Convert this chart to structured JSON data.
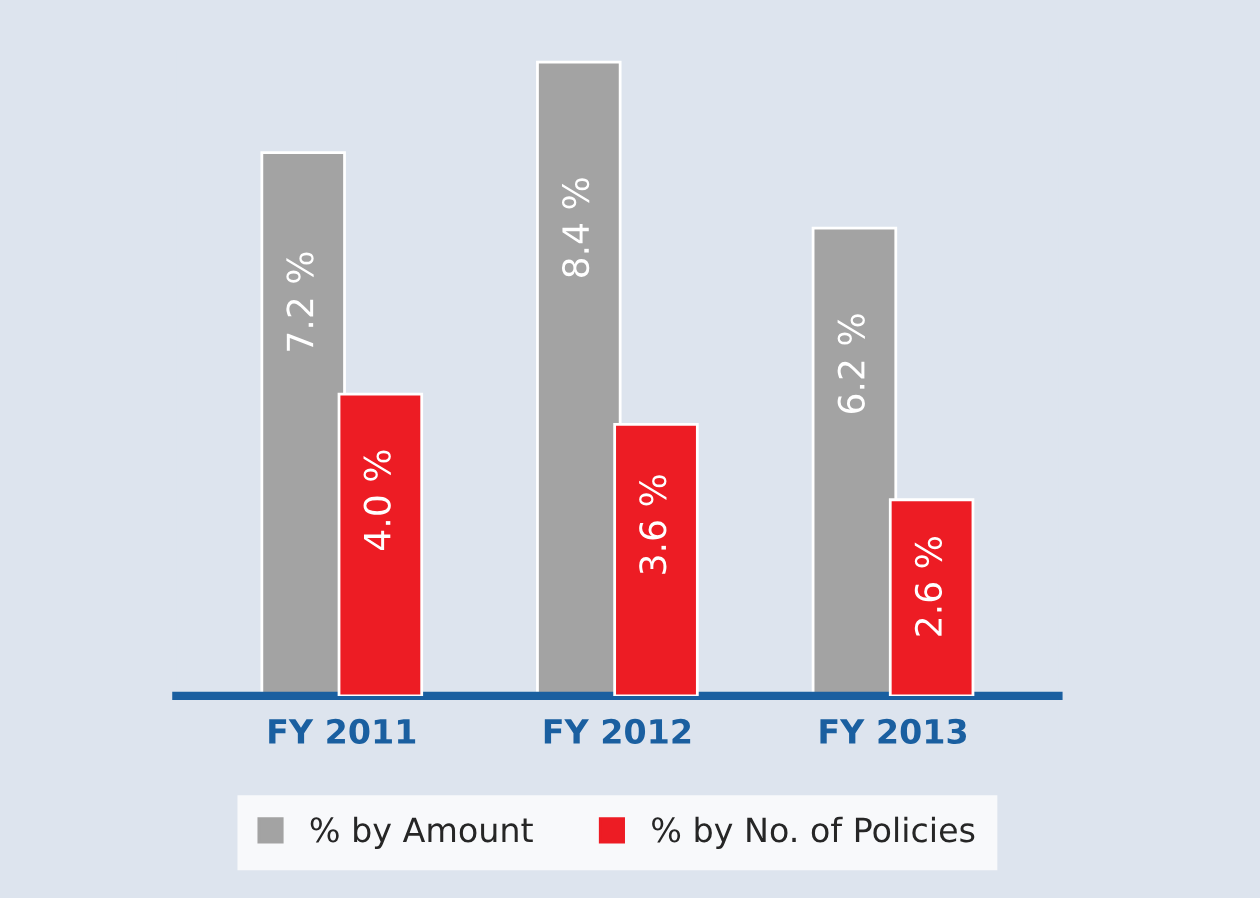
{
  "chart_data": {
    "type": "bar",
    "categories": [
      "FY 2011",
      "FY 2012",
      "FY 2013"
    ],
    "series": [
      {
        "name": "% by Amount",
        "color": "#a3a3a3",
        "values": [
          7.2,
          8.4,
          6.2
        ],
        "value_labels": [
          "7.2 %",
          "8.4 %",
          "6.2 %"
        ]
      },
      {
        "name": "% by No. of Policies",
        "color": "#ed1c24",
        "values": [
          4.0,
          3.6,
          2.6
        ],
        "value_labels": [
          "4.0 %",
          "3.6 %",
          "2.6 %"
        ]
      }
    ],
    "legend": "bottom",
    "grid": false
  }
}
